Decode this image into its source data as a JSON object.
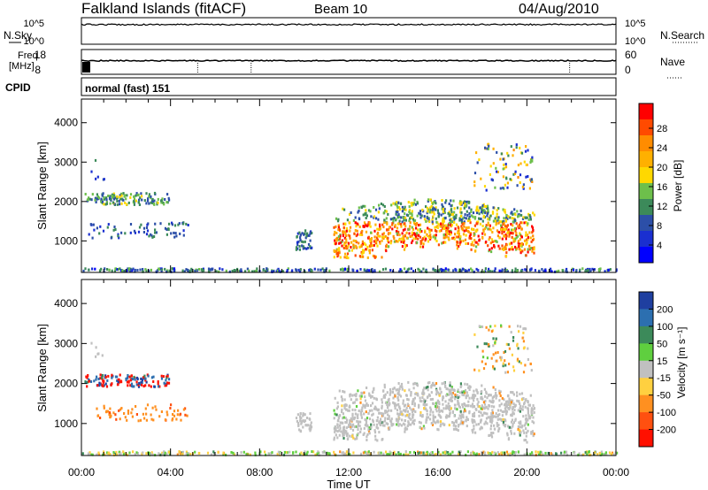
{
  "header": {
    "station": "Falkland Islands (fitACF)",
    "beam": "Beam 10",
    "date": "04/Aug/2010"
  },
  "top_panels": {
    "nsky_label": "N.Sky",
    "nsearch_label": "N.Search",
    "noise_ticks": [
      "10^5",
      "10^0"
    ],
    "freq_label_1": "Freq.",
    "freq_label_2": "[MHz]",
    "freq_ticks": [
      "18",
      "8"
    ],
    "nave_label": "Nave",
    "nave_ticks": [
      "60",
      "0"
    ],
    "cpid_label": "CPID",
    "cpid_text": "normal (fast) 151"
  },
  "power_colorbar": {
    "title": "Power [dB]",
    "ticks": [
      "28",
      "24",
      "20",
      "16",
      "12",
      "8",
      "4"
    ],
    "colors": [
      "#ff0000",
      "#ff4a00",
      "#ff8c00",
      "#ffb000",
      "#ffd800",
      "#6dbf4b",
      "#3c8a5a",
      "#2c4fa8",
      "#1a2fd0",
      "#0000ff"
    ]
  },
  "velocity_colorbar": {
    "title": "Velocity [m s⁻¹]",
    "ticks": [
      "200",
      "100",
      "50",
      "15",
      "-15",
      "-50",
      "-100",
      "-200"
    ],
    "colors": [
      "#1f3fa0",
      "#2c6fb0",
      "#3c8a5a",
      "#5fcf3f",
      "#c0c0c0",
      "#ffd040",
      "#ff9020",
      "#ff5010",
      "#ff1000"
    ]
  },
  "chart_data": {
    "type": "heatmap",
    "panels": [
      {
        "name": "power",
        "ylabel": "Slant Range [km]",
        "ylim": [
          200,
          4600
        ],
        "yticks": [
          1000,
          2000,
          3000,
          4000
        ],
        "value_units": "dB",
        "value_range": [
          0,
          30
        ]
      },
      {
        "name": "velocity",
        "ylabel": "Slant Range [km]",
        "ylim": [
          200,
          4600
        ],
        "yticks": [
          1000,
          2000,
          3000,
          4000
        ],
        "value_units": "m s-1",
        "value_range": [
          -200,
          200
        ]
      }
    ],
    "xlabel": "Time UT",
    "xticks": [
      "00:00",
      "04:00",
      "08:00",
      "12:00",
      "16:00",
      "20:00",
      "00:00"
    ],
    "xlim_hours": [
      0,
      24
    ]
  }
}
